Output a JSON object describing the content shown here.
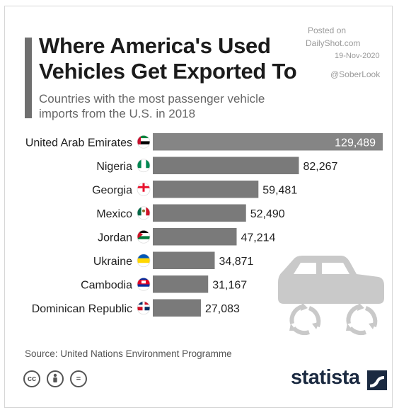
{
  "header": {
    "title_line1": "Where America's Used",
    "title_line2": "Vehicles Get Exported To",
    "subtitle_line1": "Countries with the most passenger vehicle",
    "subtitle_line2": "imports from the U.S. in 2018"
  },
  "attribution": {
    "posted": "Posted on",
    "site": "DailyShot.com",
    "date": "19-Nov-2020",
    "handle": "@SoberLook"
  },
  "footer": {
    "source": "Source: United Nations Environment Programme",
    "cc_icon": "cc",
    "by_icon": "person",
    "nd_icon": "=",
    "brand": "statista"
  },
  "colors": {
    "bar": "#7a7a7a",
    "bar_first": "#858585",
    "title": "#1b1b1b",
    "subtitle": "#666666",
    "brand": "#1b2a41",
    "car_icon": "#c9c9c9"
  },
  "chart_data": {
    "type": "bar",
    "orientation": "horizontal",
    "categories": [
      "United Arab Emirates",
      "Nigeria",
      "Georgia",
      "Mexico",
      "Jordan",
      "Ukraine",
      "Cambodia",
      "Dominican Republic"
    ],
    "values": [
      129489,
      82267,
      59481,
      52490,
      47214,
      34871,
      31167,
      27083
    ],
    "value_labels": [
      "129,489",
      "82,267",
      "59,481",
      "52,490",
      "47,214",
      "34,871",
      "31,167",
      "27,083"
    ],
    "flags": [
      "uae-flag",
      "nigeria-flag",
      "georgia-flag",
      "mexico-flag",
      "jordan-flag",
      "ukraine-flag",
      "cambodia-flag",
      "dominican-republic-flag"
    ],
    "xlim": [
      0,
      129489
    ],
    "grid": false,
    "legend": "none"
  }
}
